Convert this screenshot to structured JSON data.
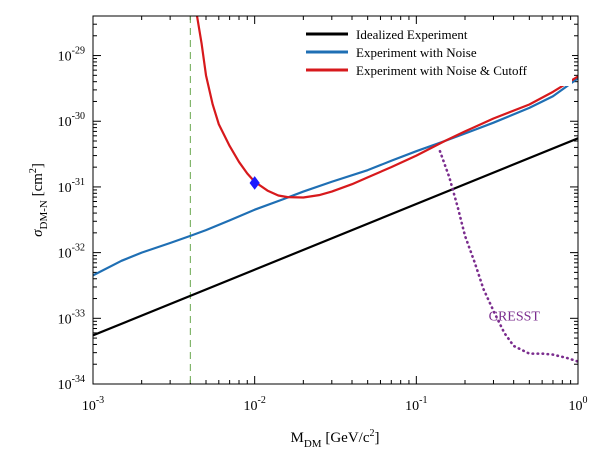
{
  "chart_data": {
    "type": "line",
    "xlabel": "M",
    "xlabel_sub": "DM",
    "xlabel_units": " [GeV/c",
    "xlabel_units_sup": "2",
    "xlabel_units_end": "]",
    "ylabel_symbol": "σ",
    "ylabel_sub": "DM-N",
    "ylabel_units": " [cm",
    "ylabel_units_sup": "2",
    "ylabel_units_end": "]",
    "x_scale": "log",
    "y_scale": "log",
    "xlim": [
      0.001,
      1
    ],
    "ylim": [
      1e-34,
      4e-29
    ],
    "x_ticks": [
      {
        "value": 0.001,
        "base": "10",
        "exp": "-3"
      },
      {
        "value": 0.01,
        "base": "10",
        "exp": "-2"
      },
      {
        "value": 0.1,
        "base": "10",
        "exp": "-1"
      },
      {
        "value": 1,
        "base": "10",
        "exp": "0"
      }
    ],
    "y_ticks": [
      {
        "value": 1e-34,
        "base": "10",
        "exp": "-34"
      },
      {
        "value": 1e-33,
        "base": "10",
        "exp": "-33"
      },
      {
        "value": 1e-32,
        "base": "10",
        "exp": "-32"
      },
      {
        "value": 1e-31,
        "base": "10",
        "exp": "-31"
      },
      {
        "value": 1e-30,
        "base": "10",
        "exp": "-30"
      },
      {
        "value": 1e-29,
        "base": "10",
        "exp": "-29"
      }
    ],
    "legend_position": "top-right",
    "series": [
      {
        "name": "Idealized Experiment",
        "color": "#000000",
        "style": "solid",
        "x": [
          0.001,
          1
        ],
        "y": [
          5.5e-34,
          5.5e-31
        ]
      },
      {
        "name": "Experiment with Noise",
        "color": "#1f6fb4",
        "style": "solid",
        "x": [
          0.001,
          0.0015,
          0.002,
          0.003,
          0.004,
          0.005,
          0.007,
          0.01,
          0.015,
          0.02,
          0.03,
          0.05,
          0.07,
          0.1,
          0.15,
          0.2,
          0.3,
          0.5,
          0.7,
          1
        ],
        "y": [
          4.5e-33,
          7.5e-33,
          1e-32,
          1.4e-32,
          1.8e-32,
          2.2e-32,
          3.1e-32,
          4.5e-32,
          6.5e-32,
          8.5e-32,
          1.2e-31,
          1.8e-31,
          2.5e-31,
          3.5e-31,
          5e-31,
          6.5e-31,
          9.5e-31,
          1.6e-30,
          2.4e-30,
          4.5e-30
        ]
      },
      {
        "name": "Experiment with Noise & Cutoff",
        "color": "#d7191c",
        "style": "solid",
        "x": [
          0.0044,
          0.0047,
          0.005,
          0.0055,
          0.006,
          0.007,
          0.008,
          0.009,
          0.01,
          0.012,
          0.014,
          0.016,
          0.02,
          0.025,
          0.03,
          0.04,
          0.05,
          0.07,
          0.1,
          0.15,
          0.2,
          0.3,
          0.5,
          0.7,
          1
        ],
        "y": [
          4e-29,
          1.5e-29,
          5e-30,
          1.8e-30,
          9e-31,
          4.2e-31,
          2.4e-31,
          1.6e-31,
          1.2e-31,
          8.8e-32,
          7.4e-32,
          7e-32,
          6.9e-32,
          7.5e-32,
          8.5e-32,
          1.1e-31,
          1.4e-31,
          2e-31,
          3e-31,
          5e-31,
          7e-31,
          1.1e-30,
          1.8e-30,
          2.8e-30,
          4.8e-30
        ]
      },
      {
        "name": "CRESST",
        "color": "#7b2d8e",
        "style": "dotted",
        "x": [
          0.14,
          0.16,
          0.18,
          0.2,
          0.23,
          0.26,
          0.3,
          0.35,
          0.4,
          0.5,
          0.6,
          0.7,
          0.85,
          1
        ],
        "y": [
          3.5e-31,
          1.4e-31,
          5e-32,
          1.8e-32,
          7e-33,
          2.8e-33,
          1.3e-33,
          6e-34,
          3.8e-34,
          2.9e-34,
          2.9e-34,
          2.8e-34,
          2.5e-34,
          2.2e-34
        ]
      }
    ],
    "reference_line": {
      "x": 0.004,
      "color": "#6aa84f",
      "style": "dashed"
    },
    "marker": {
      "x": 0.01,
      "y": 1.15e-31,
      "color": "#1a1aff",
      "shape": "diamond"
    },
    "annotations": [
      {
        "text": "CRESST",
        "x": 0.28,
        "y": 1.1e-33,
        "color": "#7b2d8e"
      }
    ]
  }
}
